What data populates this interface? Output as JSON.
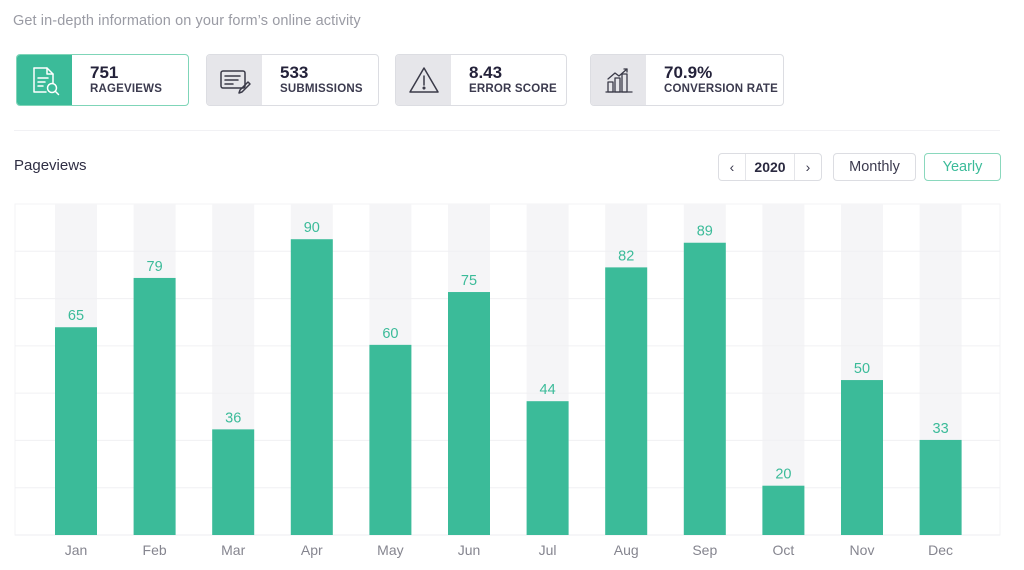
{
  "header": {
    "subtitle": "Get in-depth information on your form’s online activity"
  },
  "cards": [
    {
      "value": "751",
      "label": "RAGEVIEWS",
      "icon": "document-search-icon",
      "active": true
    },
    {
      "value": "533",
      "label": "SUBMISSIONS",
      "icon": "form-edit-icon",
      "active": false
    },
    {
      "value": "8.43",
      "label": "ERROR SCORE",
      "icon": "warning-triangle-icon",
      "active": false
    },
    {
      "value": "70.9%",
      "label": "CONVERSION RATE",
      "icon": "growth-chart-icon",
      "active": false
    }
  ],
  "chart_header": {
    "title": "Pageviews",
    "year": "2020",
    "prev_icon": "chevron-left-icon",
    "next_icon": "chevron-right-icon",
    "prev_glyph": "‹",
    "next_glyph": "›",
    "monthly_label": "Monthly",
    "yearly_label": "Yearly",
    "selected_period": "Yearly"
  },
  "colors": {
    "accent": "#3bbb99",
    "track": "#f5f5f7",
    "grid": "#f0f0f3"
  },
  "chart_data": {
    "type": "bar",
    "title": "Pageviews",
    "xlabel": "",
    "ylabel": "",
    "categories": [
      "Jan",
      "Feb",
      "Mar",
      "Apr",
      "May",
      "Jun",
      "Jul",
      "Aug",
      "Sep",
      "Oct",
      "Nov",
      "Dec"
    ],
    "values": [
      65,
      79,
      36,
      90,
      60,
      75,
      44,
      82,
      89,
      20,
      50,
      33
    ],
    "ylim": [
      6,
      100
    ],
    "grid": true,
    "legend": "none",
    "data_labels": true
  }
}
